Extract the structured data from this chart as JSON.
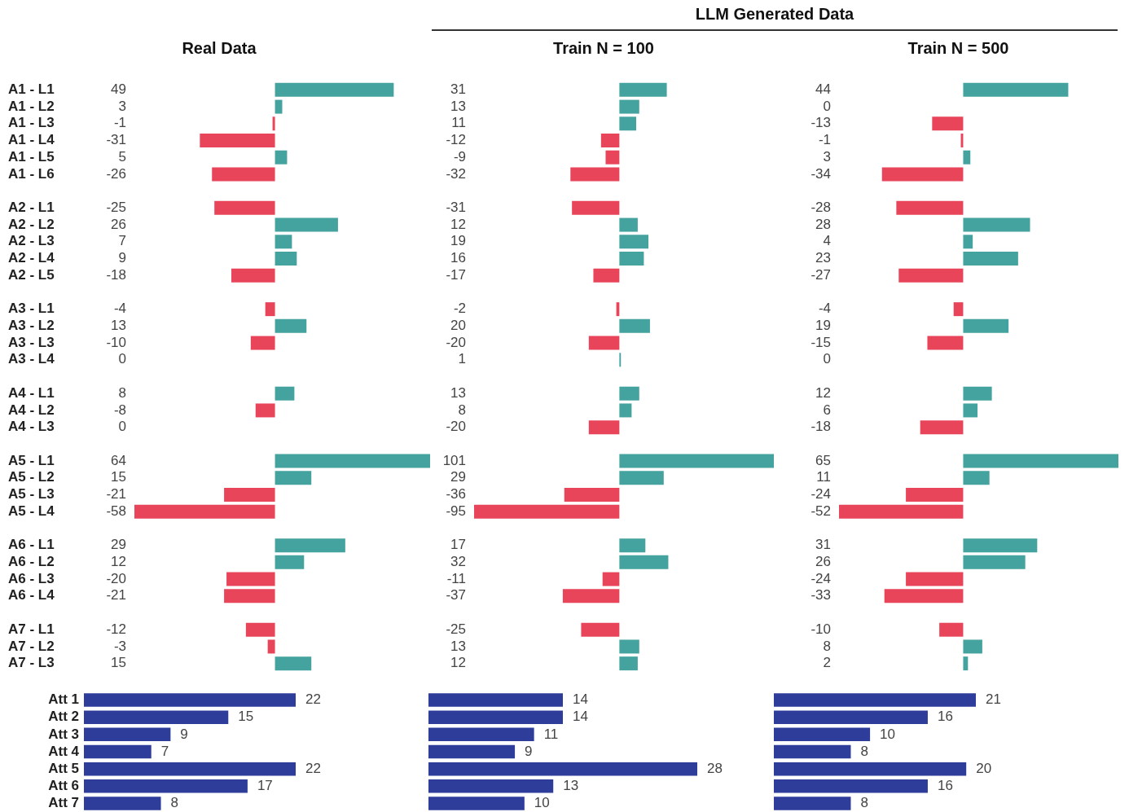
{
  "chart_data": [
    {
      "type": "bar",
      "orientation": "horizontal",
      "title": "Real Data",
      "tick_labels": "y",
      "grid": false,
      "legend": false,
      "data_labels": true,
      "categories": [
        "A1 - L1",
        "A1 - L2",
        "A1 - L3",
        "A1 - L4",
        "A1 - L5",
        "A1 - L6",
        null,
        "A2 - L1",
        "A2 - L2",
        "A2 - L3",
        "A2 - L4",
        "A2 - L5",
        null,
        "A3 - L1",
        "A3 - L2",
        "A3 - L3",
        "A3 - L4",
        null,
        "A4 - L1",
        "A4 - L2",
        "A4 - L3",
        null,
        "A5 - L1",
        "A5 - L2",
        "A5 - L3",
        "A5 - L4",
        null,
        "A6 - L1",
        "A6 - L2",
        "A6 - L3",
        "A6 - L4",
        null,
        "A7 - L1",
        "A7 - L2",
        "A7 - L3"
      ],
      "values": [
        49,
        3,
        -1,
        -31,
        5,
        -26,
        null,
        -25,
        26,
        7,
        9,
        -18,
        null,
        -4,
        13,
        -10,
        0,
        null,
        8,
        -8,
        0,
        null,
        64,
        15,
        -21,
        -58,
        null,
        29,
        12,
        -20,
        -21,
        null,
        -12,
        -3,
        15
      ],
      "colors": [
        "#44a39f",
        "#44a39f",
        "#e8455a",
        "#e8455a",
        "#44a39f",
        "#e8455a",
        null,
        "#e8455a",
        "#44a39f",
        "#44a39f",
        "#44a39f",
        "#e8455a",
        null,
        "#e8455a",
        "#44a39f",
        "#e8455a",
        "#44a39f",
        null,
        "#44a39f",
        "#e8455a",
        "#44a39f",
        null,
        "#44a39f",
        "#44a39f",
        "#e8455a",
        "#e8455a",
        null,
        "#44a39f",
        "#44a39f",
        "#e8455a",
        "#e8455a",
        null,
        "#e8455a",
        "#e8455a",
        "#44a39f"
      ]
    },
    {
      "type": "bar",
      "orientation": "horizontal",
      "title": "Train N = 100",
      "annotations": [
        "LLM Generated Data"
      ],
      "tick_labels": false,
      "grid": false,
      "legend": false,
      "data_labels": true,
      "categories": [
        null,
        null,
        null,
        null,
        null,
        null,
        null,
        null,
        null,
        null,
        null,
        null,
        null,
        null,
        null,
        null,
        null,
        null,
        null,
        null,
        null,
        null,
        null,
        null,
        null,
        null,
        null,
        null,
        null,
        null,
        null,
        null,
        null,
        null,
        null
      ],
      "values": [
        31,
        13,
        11,
        -12,
        -9,
        -32,
        null,
        -31,
        12,
        19,
        16,
        -17,
        null,
        -2,
        20,
        -20,
        1,
        null,
        13,
        8,
        -20,
        null,
        101,
        29,
        -36,
        -95,
        null,
        17,
        32,
        -11,
        -37,
        null,
        -25,
        13,
        12
      ],
      "colors": [
        "#44a39f",
        "#44a39f",
        "#44a39f",
        "#e8455a",
        "#e8455a",
        "#e8455a",
        null,
        "#e8455a",
        "#44a39f",
        "#44a39f",
        "#44a39f",
        "#e8455a",
        null,
        "#e8455a",
        "#44a39f",
        "#e8455a",
        "#44a39f",
        null,
        "#44a39f",
        "#44a39f",
        "#e8455a",
        null,
        "#44a39f",
        "#44a39f",
        "#e8455a",
        "#e8455a",
        null,
        "#44a39f",
        "#44a39f",
        "#e8455a",
        "#e8455a",
        null,
        "#e8455a",
        "#44a39f",
        "#44a39f"
      ]
    },
    {
      "type": "bar",
      "orientation": "horizontal",
      "title": "Train N = 500",
      "tick_labels": false,
      "grid": false,
      "legend": false,
      "data_labels": true,
      "categories": [
        null,
        null,
        null,
        null,
        null,
        null,
        null,
        null,
        null,
        null,
        null,
        null,
        null,
        null,
        null,
        null,
        null,
        null,
        null,
        null,
        null,
        null,
        null,
        null,
        null,
        null,
        null,
        null,
        null,
        null,
        null,
        null,
        null,
        null,
        null
      ],
      "values": [
        44,
        0,
        -13,
        -1,
        3,
        -34,
        null,
        -28,
        28,
        4,
        23,
        -27,
        null,
        -4,
        19,
        -15,
        0,
        null,
        12,
        6,
        -18,
        null,
        65,
        11,
        -24,
        -52,
        null,
        31,
        26,
        -24,
        -33,
        null,
        -10,
        8,
        2
      ],
      "colors": [
        "#44a39f",
        "#44a39f",
        "#e8455a",
        "#e8455a",
        "#44a39f",
        "#e8455a",
        null,
        "#e8455a",
        "#44a39f",
        "#44a39f",
        "#44a39f",
        "#e8455a",
        null,
        "#e8455a",
        "#44a39f",
        "#e8455a",
        "#44a39f",
        null,
        "#44a39f",
        "#44a39f",
        "#e8455a",
        null,
        "#44a39f",
        "#44a39f",
        "#e8455a",
        "#e8455a",
        null,
        "#44a39f",
        "#44a39f",
        "#e8455a",
        "#e8455a",
        null,
        "#e8455a",
        "#44a39f",
        "#44a39f"
      ]
    },
    {
      "type": "bar",
      "orientation": "horizontal",
      "tick_labels": "y",
      "grid": false,
      "legend": false,
      "data_labels": true,
      "color": "#2e3c9a",
      "categories": [
        "Att 1",
        "Att 2",
        "Att 3",
        "Att 4",
        "Att 5",
        "Att 6",
        "Att 7"
      ],
      "values": [
        22,
        15,
        9,
        7,
        22,
        17,
        8
      ]
    },
    {
      "type": "bar",
      "orientation": "horizontal",
      "tick_labels": false,
      "grid": false,
      "legend": false,
      "data_labels": true,
      "color": "#2e3c9a",
      "categories": [
        null,
        null,
        null,
        null,
        null,
        null,
        null
      ],
      "values": [
        14,
        14,
        11,
        9,
        28,
        13,
        10
      ]
    },
    {
      "type": "bar",
      "orientation": "horizontal",
      "tick_labels": false,
      "grid": false,
      "legend": false,
      "data_labels": true,
      "color": "#2e3c9a",
      "categories": [
        null,
        null,
        null,
        null,
        null,
        null,
        null
      ],
      "values": [
        21,
        16,
        10,
        8,
        20,
        16,
        8
      ]
    }
  ]
}
